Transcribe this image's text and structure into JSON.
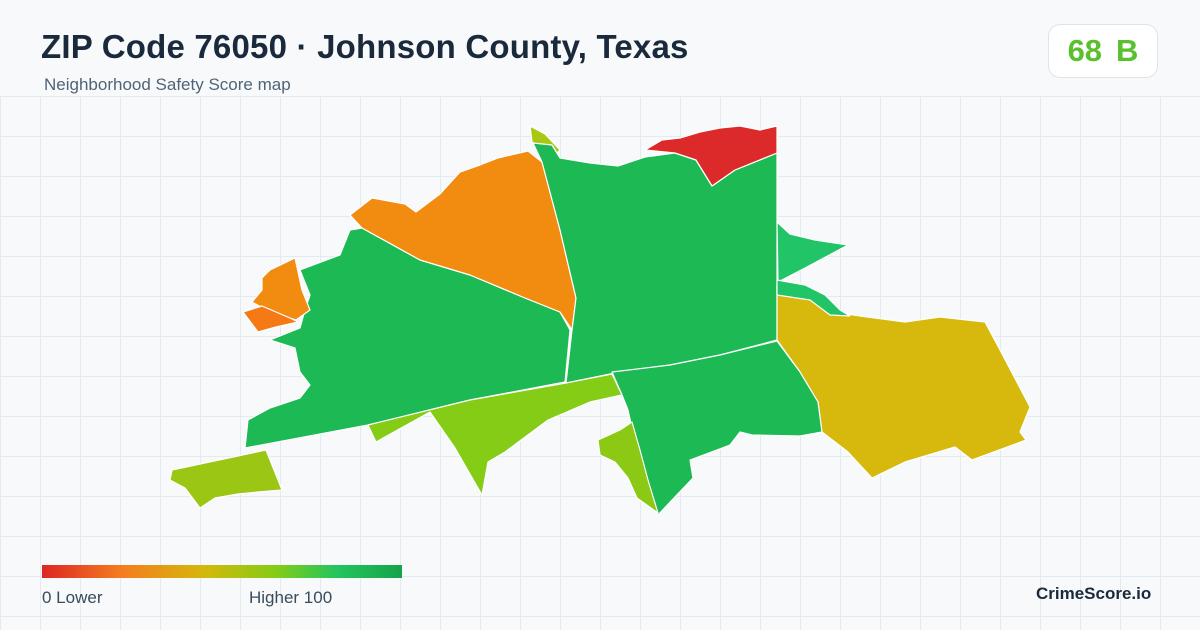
{
  "header": {
    "title": "ZIP Code 76050 · Johnson County, Texas",
    "subtitle": "Neighborhood Safety Score map"
  },
  "score": {
    "value": "68",
    "grade": "B",
    "color": "#5ac02e"
  },
  "legend": {
    "low_label": "0  Lower",
    "high_label": "Higher  100",
    "colors": [
      "#dc2626",
      "#f57c1f",
      "#d4b80c",
      "#84cc16",
      "#22c55e",
      "#16a34a"
    ]
  },
  "regions": [
    {
      "name": "north-east-tip",
      "color": "#dc2a2a"
    },
    {
      "name": "north-center",
      "color": "#f28c11"
    },
    {
      "name": "far-north-sliver",
      "color": "#a8c814"
    },
    {
      "name": "west-small-upper",
      "color": "#f28c11"
    },
    {
      "name": "west-small-lower",
      "color": "#f57a16"
    },
    {
      "name": "west-main",
      "color": "#1db954"
    },
    {
      "name": "center-main",
      "color": "#1db954"
    },
    {
      "name": "east-small",
      "color": "#21c466"
    },
    {
      "name": "east-large",
      "color": "#d6b90c"
    },
    {
      "name": "south-center",
      "color": "#1db954"
    },
    {
      "name": "south-band",
      "color": "#84cc16"
    },
    {
      "name": "south-small",
      "color": "#8cc915"
    },
    {
      "name": "far-west",
      "color": "#9cc614"
    }
  ],
  "brand": "CrimeScore.io"
}
